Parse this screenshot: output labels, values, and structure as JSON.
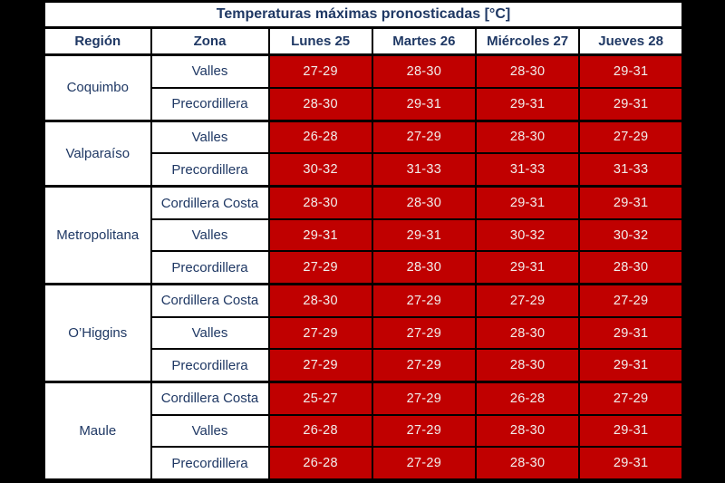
{
  "colors": {
    "page_bg": "#000000",
    "table_bg": "#ffffff",
    "border": "#000000",
    "navy": "#1f3864",
    "red": "#c00000",
    "cell_text": "#f2eeec"
  },
  "chart_data": {
    "type": "table",
    "title": "Temperaturas máximas pronosticadas [°C]",
    "columns": [
      "Región",
      "Zona",
      "Lunes 25",
      "Martes 26",
      "Miércoles 27",
      "Jueves 28"
    ],
    "unit": "°C",
    "groups": [
      {
        "region": "Coquimbo",
        "rows": [
          {
            "zone": "Valles",
            "temps": [
              "27-29",
              "28-30",
              "28-30",
              "29-31"
            ]
          },
          {
            "zone": "Precordillera",
            "temps": [
              "28-30",
              "29-31",
              "29-31",
              "29-31"
            ]
          }
        ]
      },
      {
        "region": "Valparaíso",
        "rows": [
          {
            "zone": "Valles",
            "temps": [
              "26-28",
              "27-29",
              "28-30",
              "27-29"
            ]
          },
          {
            "zone": "Precordillera",
            "temps": [
              "30-32",
              "31-33",
              "31-33",
              "31-33"
            ]
          }
        ]
      },
      {
        "region": "Metropolitana",
        "rows": [
          {
            "zone": "Cordillera Costa",
            "temps": [
              "28-30",
              "28-30",
              "29-31",
              "29-31"
            ]
          },
          {
            "zone": "Valles",
            "temps": [
              "29-31",
              "29-31",
              "30-32",
              "30-32"
            ]
          },
          {
            "zone": "Precordillera",
            "temps": [
              "27-29",
              "28-30",
              "29-31",
              "28-30"
            ]
          }
        ]
      },
      {
        "region": "O’Higgins",
        "rows": [
          {
            "zone": "Cordillera Costa",
            "temps": [
              "28-30",
              "27-29",
              "27-29",
              "27-29"
            ]
          },
          {
            "zone": "Valles",
            "temps": [
              "27-29",
              "27-29",
              "28-30",
              "29-31"
            ]
          },
          {
            "zone": "Precordillera",
            "temps": [
              "27-29",
              "27-29",
              "28-30",
              "29-31"
            ]
          }
        ]
      },
      {
        "region": "Maule",
        "rows": [
          {
            "zone": "Cordillera Costa",
            "temps": [
              "25-27",
              "27-29",
              "26-28",
              "27-29"
            ]
          },
          {
            "zone": "Valles",
            "temps": [
              "26-28",
              "27-29",
              "28-30",
              "29-31"
            ]
          },
          {
            "zone": "Precordillera",
            "temps": [
              "26-28",
              "27-29",
              "28-30",
              "29-31"
            ]
          }
        ]
      }
    ]
  }
}
